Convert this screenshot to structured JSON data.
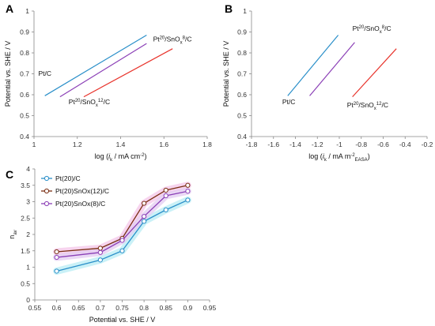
{
  "chart_data": [
    {
      "panel": "A",
      "type": "line",
      "xlabel_main": "log (",
      "xlabel_var": "i",
      "xlabel_sub": "k",
      "xlabel_unit": " / mA cm",
      "xlabel_sup": "-2",
      "xlabel_end": ")",
      "ylabel": "Potential vs. SHE / V",
      "xlim": [
        1,
        1.8
      ],
      "ylim": [
        0.4,
        1
      ],
      "x_ticks": [
        "1",
        "1.2",
        "1.4",
        "1.6",
        "1.8"
      ],
      "y_ticks": [
        "0.4",
        "0.5",
        "0.6",
        "0.7",
        "0.8",
        "0.9",
        "1"
      ],
      "series": [
        {
          "color": "#2a8fc9",
          "x": [
            1.05,
            1.52
          ],
          "y": [
            0.595,
            0.885
          ]
        },
        {
          "color": "#8b3fb6",
          "x": [
            1.12,
            1.52
          ],
          "y": [
            0.59,
            0.845
          ]
        },
        {
          "color": "#e8332b",
          "x": [
            1.23,
            1.64
          ],
          "y": [
            0.59,
            0.82
          ]
        }
      ],
      "annotations": [
        {
          "text": "Pt/C",
          "x": 1.02,
          "y": 0.69
        },
        {
          "main": "Pt",
          "sup": "20",
          "rest": "/SnO",
          "sub": "x",
          "sup2": "8",
          "end": "/C",
          "x": 1.55,
          "y": 0.855
        },
        {
          "main": "Pt",
          "sup": "20",
          "rest": "/SnO",
          "sub": "x",
          "sup2": "12",
          "end": "/C",
          "x": 1.16,
          "y": 0.555
        }
      ]
    },
    {
      "panel": "B",
      "type": "line",
      "xlabel_main": "log (",
      "xlabel_var": "i",
      "xlabel_sub": "k",
      "xlabel_unit": " / mA m",
      "xlabel_sup": "-2",
      "xlabel_sub2": "EASA",
      "xlabel_end": ")",
      "ylabel": "Potential vs. SHE / V",
      "xlim": [
        -1.8,
        -0.2
      ],
      "ylim": [
        0.4,
        1
      ],
      "x_ticks": [
        "-1.8",
        "-1.6",
        "-1.4",
        "-1.2",
        "-1",
        "-0.8",
        "-0.6",
        "-0.4",
        "-0.2"
      ],
      "y_ticks": [
        "0.4",
        "0.5",
        "0.6",
        "0.7",
        "0.8",
        "0.9",
        "1"
      ],
      "series": [
        {
          "color": "#2a8fc9",
          "x": [
            -1.47,
            -1.01
          ],
          "y": [
            0.595,
            0.885
          ]
        },
        {
          "color": "#8b3fb6",
          "x": [
            -1.27,
            -0.86
          ],
          "y": [
            0.595,
            0.85
          ]
        },
        {
          "color": "#e8332b",
          "x": [
            -0.88,
            -0.48
          ],
          "y": [
            0.59,
            0.82
          ]
        }
      ],
      "annotations": [
        {
          "text": "Pt/C",
          "x": -1.52,
          "y": 0.555
        },
        {
          "main": "Pt",
          "sup": "20",
          "rest": "/SnO",
          "sub": "x",
          "sup2": "8",
          "end": "/C",
          "x": -0.88,
          "y": 0.905
        },
        {
          "main": "Pt",
          "sup": "20",
          "rest": "/SnO",
          "sub": "x",
          "sup2": "12",
          "end": "/C",
          "x": -0.93,
          "y": 0.54
        }
      ]
    },
    {
      "panel": "C",
      "type": "line",
      "xlabel": "Potential vs. SHE / V",
      "ylabel_main": "n",
      "ylabel_sub": "av",
      "xlim": [
        0.55,
        0.95
      ],
      "ylim": [
        0,
        4
      ],
      "x_ticks": [
        "0.55",
        "0.6",
        "0.65",
        "0.7",
        "0.75",
        "0.8",
        "0.85",
        "0.9",
        "0.95"
      ],
      "y_ticks": [
        "0",
        "0.5",
        "1",
        "1.5",
        "2",
        "2.5",
        "3",
        "3.5",
        "4"
      ],
      "legend_position": "top-left",
      "series": [
        {
          "name": "Pt(20)/C",
          "color": "#2a8fc9",
          "band": "#b8ecf4",
          "x": [
            0.6,
            0.7,
            0.75,
            0.8,
            0.85,
            0.9
          ],
          "y": [
            0.88,
            1.22,
            1.5,
            2.4,
            2.75,
            3.05
          ]
        },
        {
          "name": "Pt(20)SnOx(12)/C",
          "color": "#7a2e12",
          "band": "#f4c6e8",
          "x": [
            0.6,
            0.7,
            0.75,
            0.8,
            0.85,
            0.9
          ],
          "y": [
            1.47,
            1.58,
            1.88,
            2.95,
            3.35,
            3.5
          ]
        },
        {
          "name": "Pt(20)SnOx(8)/C",
          "color": "#8b3fb6",
          "band": "#e3ccf2",
          "x": [
            0.6,
            0.7,
            0.75,
            0.8,
            0.85,
            0.9
          ],
          "y": [
            1.3,
            1.45,
            1.82,
            2.55,
            3.18,
            3.32
          ]
        }
      ]
    }
  ]
}
